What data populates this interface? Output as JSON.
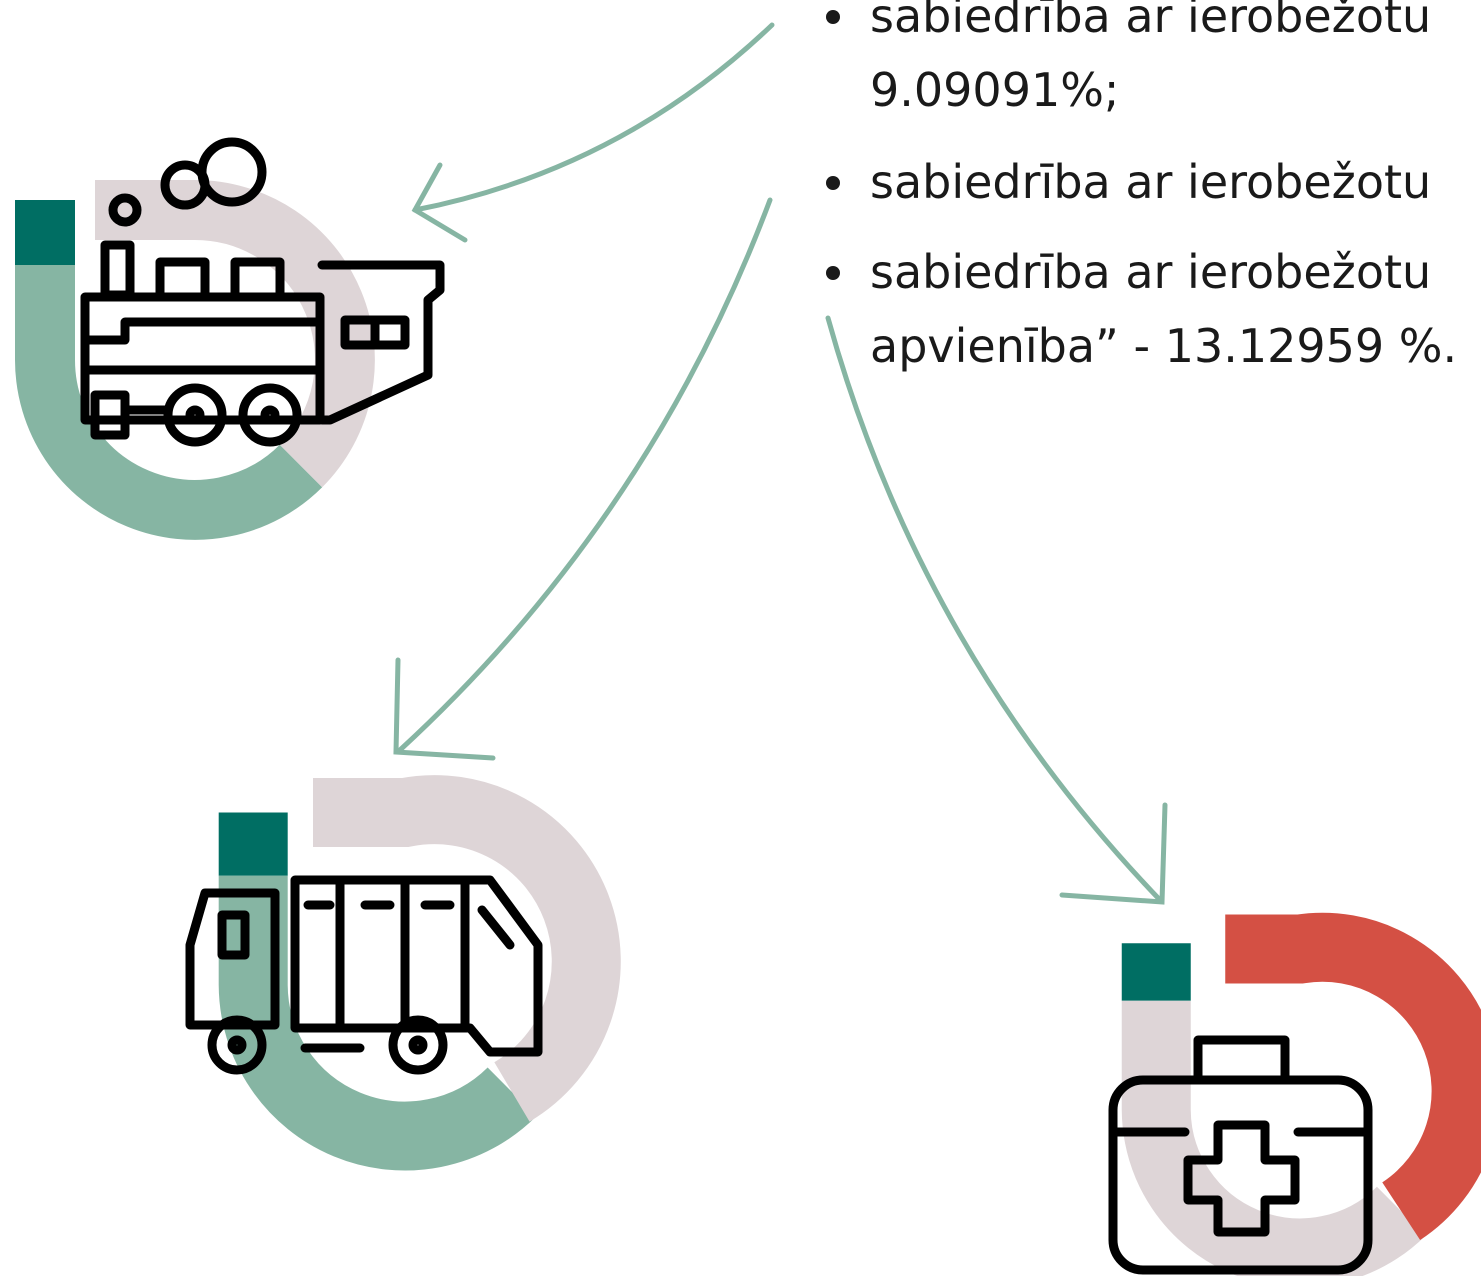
{
  "list": {
    "items": [
      {
        "lines": [
          "sabiedrība ar ierobežotu",
          "9.09091%;"
        ]
      },
      {
        "lines": [
          "sabiedrība ar ierobežotu"
        ]
      },
      {
        "lines": [
          "sabiedrība ar ierobežotu",
          "apvienība” - 13.12959 %."
        ]
      }
    ]
  }
}
